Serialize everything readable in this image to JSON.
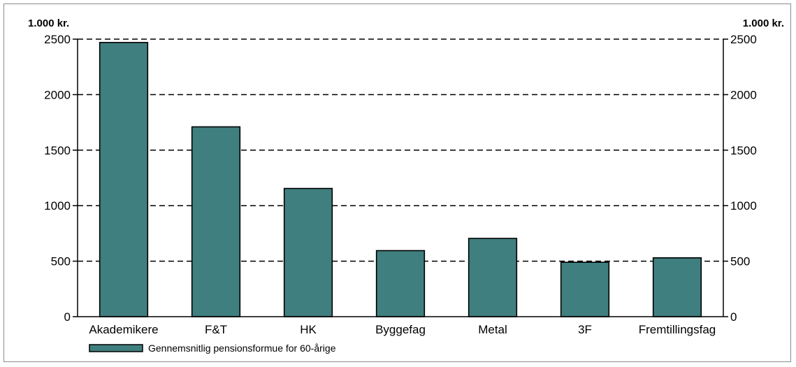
{
  "chart_data": {
    "type": "bar",
    "left_unit_label": "1.000 kr.",
    "right_unit_label": "1.000 kr.",
    "categories": [
      "Akademikere",
      "F&T",
      "HK",
      "Byggefag",
      "Metal",
      "3F",
      "Fremtillingsfag"
    ],
    "series": [
      {
        "name": "Gennemsnitlig pensionsformue for 60-årige",
        "values": [
          2470,
          1710,
          1155,
          595,
          705,
          490,
          530
        ],
        "color": "#407f7f"
      }
    ],
    "ylim": [
      0,
      2500
    ],
    "yticks": [
      0,
      500,
      1000,
      1500,
      2000,
      2500
    ],
    "grid": "dashed-horizontal",
    "legend_position": "bottom-left",
    "secondary_axis": "right-mirrored"
  }
}
